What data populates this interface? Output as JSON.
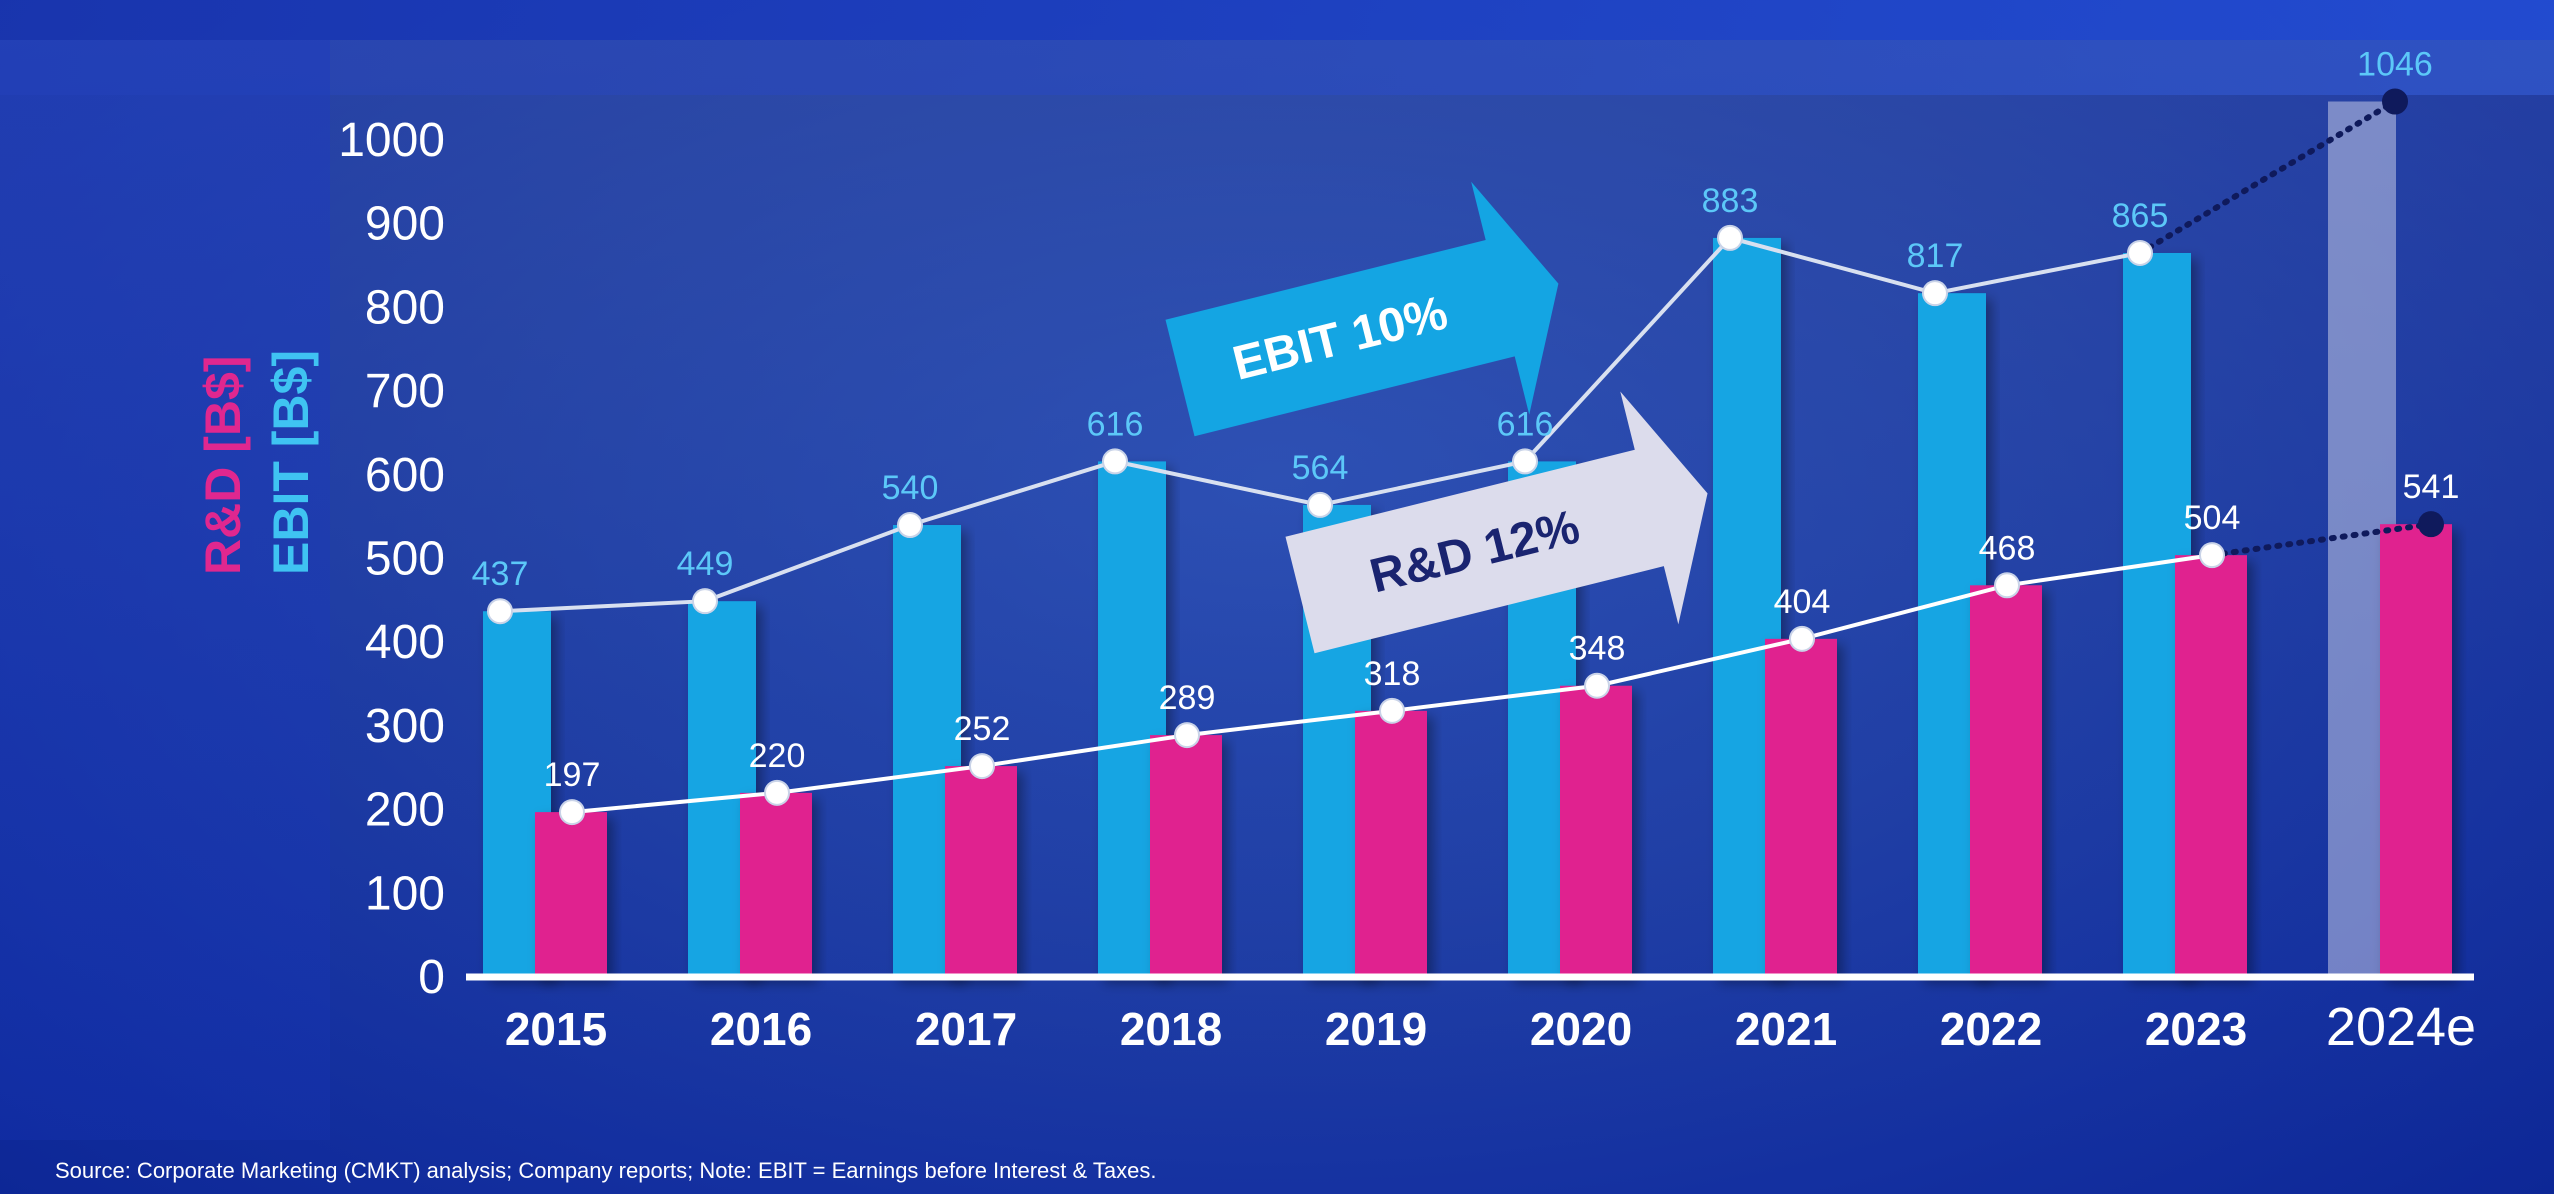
{
  "chart_data": {
    "type": "bar",
    "categories": [
      "2015",
      "2016",
      "2017",
      "2018",
      "2019",
      "2020",
      "2021",
      "2022",
      "2023",
      "2024e"
    ],
    "series": [
      {
        "name": "EBIT",
        "values": [
          437,
          449,
          540,
          616,
          564,
          616,
          883,
          817,
          865,
          1046
        ],
        "color": "#14a5e3",
        "line_color": "#d8e0f0",
        "label_color": "#5cc8f8"
      },
      {
        "name": "R&D",
        "values": [
          197,
          220,
          252,
          289,
          318,
          348,
          404,
          468,
          504,
          541
        ],
        "color": "#e0208f",
        "line_color": "#ffffff",
        "label_color": "#ffffff"
      }
    ],
    "estimate_category": "2024e",
    "ylim": [
      0,
      1000
    ],
    "yticks": [
      0,
      100,
      200,
      300,
      400,
      500,
      600,
      700,
      800,
      900,
      1000
    ],
    "ylabel_rd": "R&D [B$]",
    "ylabel_ebit": "EBIT [B$]",
    "grid": false,
    "annotations": [
      {
        "text": "EBIT 10%",
        "color": "#14a5e3",
        "text_color": "#ffffff"
      },
      {
        "text": "R&D 12%",
        "color": "#dcdcec",
        "text_color": "#1a2470"
      }
    ]
  },
  "source_note": "Source: Corporate Marketing (CMKT) analysis; Company reports; Note: EBIT = Earnings before Interest & Taxes."
}
